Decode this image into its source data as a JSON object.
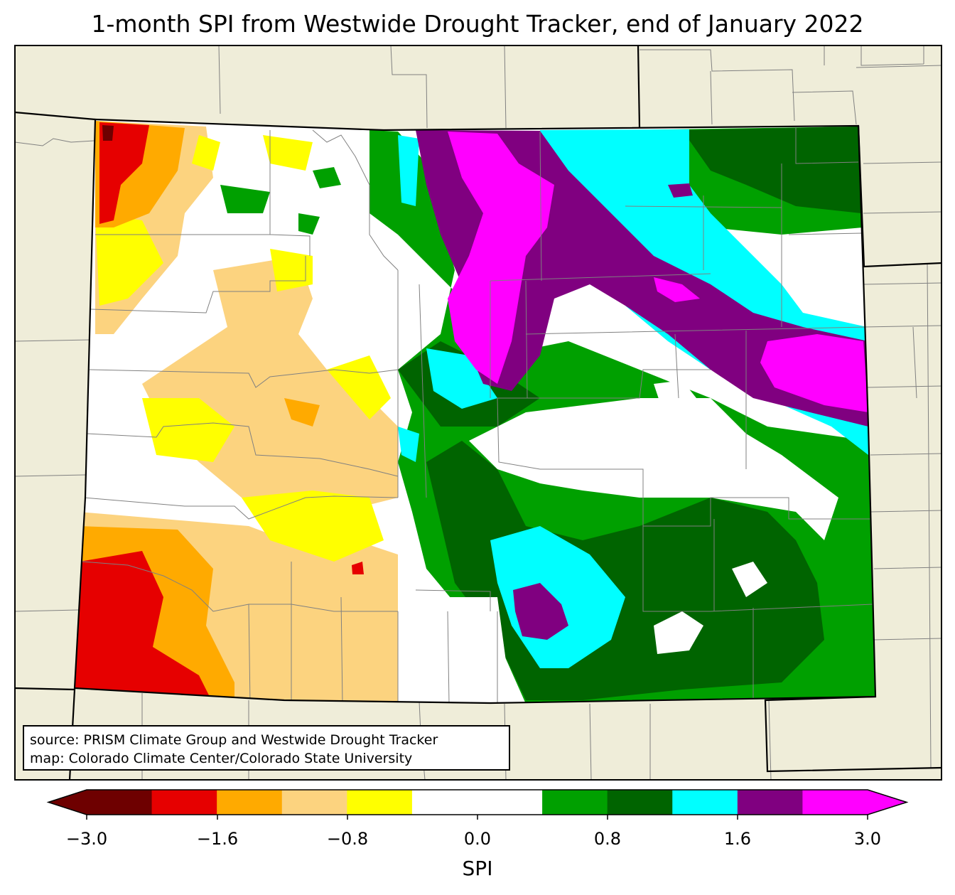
{
  "title": "1-month SPI from Westwide Drought Tracker, end of January 2022",
  "source_box": {
    "line1": "source: PRISM Climate Group and Westwide Drought Tracker",
    "line2": "map: Colorado Climate Center/Colorado State University"
  },
  "colorbar": {
    "label": "SPI",
    "ticks": [
      "−3.0",
      "−1.6",
      "−0.8",
      "0.0",
      "0.8",
      "1.6",
      "3.0"
    ],
    "colors": [
      "#6e0000",
      "#e60000",
      "#ffaa00",
      "#fcd37f",
      "#ffff00",
      "#ffffff",
      "#ffffff",
      "#00a000",
      "#006400",
      "#00ffff",
      "#800080",
      "#ff00ff"
    ],
    "land_color": "#efedd9"
  }
}
